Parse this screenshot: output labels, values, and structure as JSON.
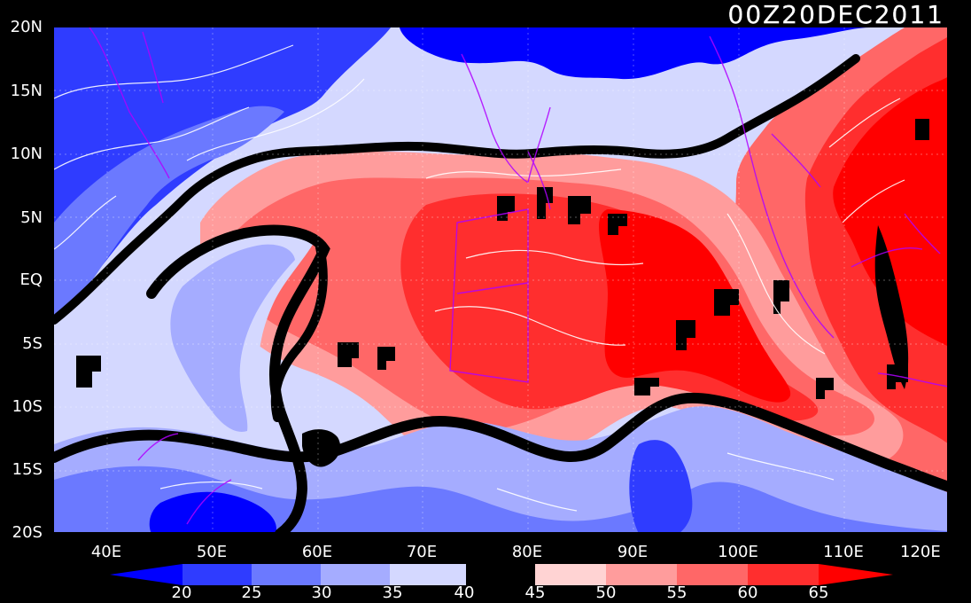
{
  "timestamp": "00Z20DEC2011",
  "latitude_labels": [
    "20N",
    "15N",
    "10N",
    "5N",
    "EQ",
    "5S",
    "10S",
    "15S",
    "20S"
  ],
  "longitude_labels": [
    "40E",
    "50E",
    "60E",
    "70E",
    "80E",
    "90E",
    "100E",
    "110E",
    "120E"
  ],
  "colorbar": {
    "labels": [
      "20",
      "25",
      "30",
      "35",
      "40",
      "45",
      "50",
      "55",
      "60",
      "65"
    ],
    "colors": [
      "#0000ff",
      "#2f3cff",
      "#6b79ff",
      "#a5acff",
      "#d4d8ff",
      "#000000",
      "#ffd3d3",
      "#ff9c9c",
      "#ff6767",
      "#ff2e2e",
      "#ff0000"
    ]
  }
}
